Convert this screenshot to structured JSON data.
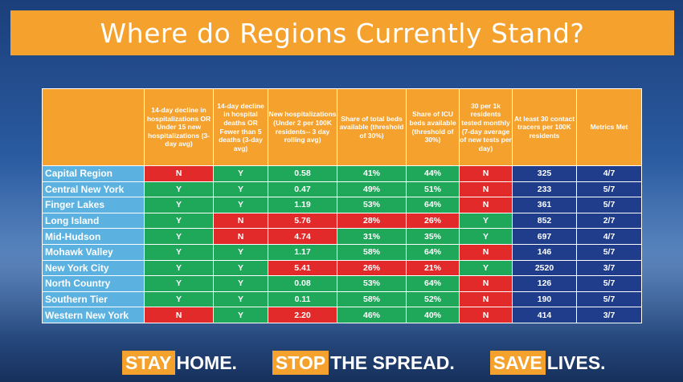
{
  "title": "Where do Regions Currently Stand?",
  "headers": [
    "",
    "14-day decline in hospitalizations OR Under 15 new hospitalizations (3-day avg)",
    "14-day decline in hospital deaths OR Fewer than 5 deaths (3-day avg)",
    "New hospitalizations (Under 2 per 100K residents-- 3 day rolling avg)",
    "Share of total beds available (threshold of 30%)",
    "Share of ICU beds available (threshold of 30%)",
    "30 per 1k residents tested monthly (7-day average of new tests per day)",
    "At least 30 contact tracers per 100K residents",
    "Metrics Met"
  ],
  "rows": [
    {
      "region": "Capital Region",
      "cells": [
        "N",
        "Y",
        "0.58",
        "41%",
        "44%",
        "N",
        "325",
        "4/7"
      ],
      "status": [
        "r",
        "g",
        "g",
        "g",
        "g",
        "r",
        "b",
        "b"
      ]
    },
    {
      "region": "Central New York",
      "cells": [
        "Y",
        "Y",
        "0.47",
        "49%",
        "51%",
        "N",
        "233",
        "5/7"
      ],
      "status": [
        "g",
        "g",
        "g",
        "g",
        "g",
        "r",
        "b",
        "b"
      ]
    },
    {
      "region": "Finger Lakes",
      "cells": [
        "Y",
        "Y",
        "1.19",
        "53%",
        "64%",
        "N",
        "361",
        "5/7"
      ],
      "status": [
        "g",
        "g",
        "g",
        "g",
        "g",
        "r",
        "b",
        "b"
      ]
    },
    {
      "region": "Long Island",
      "cells": [
        "Y",
        "N",
        "5.76",
        "28%",
        "26%",
        "Y",
        "852",
        "2/7"
      ],
      "status": [
        "g",
        "r",
        "r",
        "r",
        "r",
        "g",
        "b",
        "b"
      ]
    },
    {
      "region": "Mid-Hudson",
      "cells": [
        "Y",
        "N",
        "4.74",
        "31%",
        "35%",
        "Y",
        "697",
        "4/7"
      ],
      "status": [
        "g",
        "r",
        "r",
        "g",
        "g",
        "g",
        "b",
        "b"
      ]
    },
    {
      "region": "Mohawk Valley",
      "cells": [
        "Y",
        "Y",
        "1.17",
        "58%",
        "64%",
        "N",
        "146",
        "5/7"
      ],
      "status": [
        "g",
        "g",
        "g",
        "g",
        "g",
        "r",
        "b",
        "b"
      ]
    },
    {
      "region": "New York City",
      "cells": [
        "Y",
        "Y",
        "5.41",
        "26%",
        "21%",
        "Y",
        "2520",
        "3/7"
      ],
      "status": [
        "g",
        "g",
        "r",
        "r",
        "r",
        "g",
        "b",
        "b"
      ]
    },
    {
      "region": "North Country",
      "cells": [
        "Y",
        "Y",
        "0.08",
        "53%",
        "64%",
        "N",
        "126",
        "5/7"
      ],
      "status": [
        "g",
        "g",
        "g",
        "g",
        "g",
        "r",
        "b",
        "b"
      ]
    },
    {
      "region": "Southern Tier",
      "cells": [
        "Y",
        "Y",
        "0.11",
        "58%",
        "52%",
        "N",
        "190",
        "5/7"
      ],
      "status": [
        "g",
        "g",
        "g",
        "g",
        "g",
        "r",
        "b",
        "b"
      ]
    },
    {
      "region": "Western New York",
      "cells": [
        "N",
        "Y",
        "2.20",
        "46%",
        "40%",
        "N",
        "414",
        "3/7"
      ],
      "status": [
        "r",
        "g",
        "r",
        "g",
        "g",
        "r",
        "b",
        "b"
      ]
    }
  ],
  "footer": {
    "part1_highlight": "STAY",
    "part1_rest": "HOME.",
    "part2_highlight": "STOP",
    "part2_rest": "THE SPREAD.",
    "part3_highlight": "SAVE",
    "part3_rest": "LIVES."
  },
  "colors": {
    "orange": "#f4a12d",
    "green": "#1fa85a",
    "red": "#e32a2a",
    "navy": "#1f3d8a",
    "region_blue": "#5bb1e0"
  }
}
